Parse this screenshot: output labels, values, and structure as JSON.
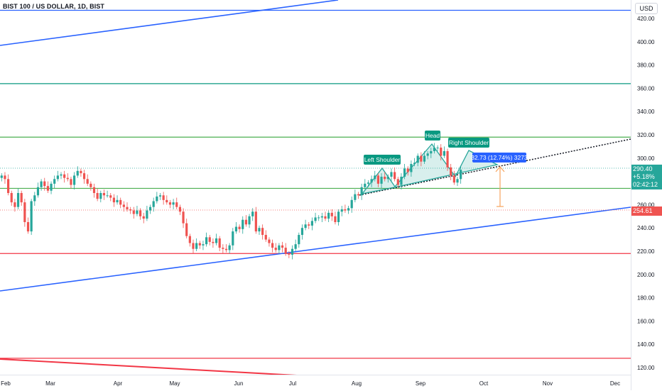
{
  "header": {
    "title": "BIST 100 / US DOLLAR, 1D, BIST",
    "currency": "USD"
  },
  "price_panel": {
    "last_price": "290.40",
    "change": "+5.18%",
    "countdown": "02:42:12",
    "marker_price": "254.61",
    "last_price_color": "#26a69a",
    "marker_color": "#ef5350"
  },
  "chart_data": {
    "type": "candlestick",
    "title": "BIST 100 / US DOLLAR, 1D, BIST",
    "x_axis": {
      "tick_labels": [
        "Feb",
        "Mar",
        "Apr",
        "May",
        "Jun",
        "Jul",
        "Aug",
        "Sep",
        "Oct",
        "Nov",
        "Dec"
      ]
    },
    "y_axis": {
      "range": [
        115,
        433
      ],
      "tick_labels": [
        "120.00",
        "140.00",
        "160.00",
        "180.00",
        "200.00",
        "220.00",
        "240.00",
        "260.00",
        "280.00",
        "300.00",
        "320.00",
        "340.00",
        "360.00",
        "380.00",
        "400.00",
        "420.00"
      ]
    },
    "series": [
      {
        "close": [
          285,
          282,
          270,
          262,
          258,
          270,
          262,
          245,
          237,
          263,
          268,
          275,
          280,
          276,
          272,
          278,
          282,
          285,
          286,
          283,
          282,
          277,
          285,
          289,
          287,
          282,
          278,
          275,
          270,
          265,
          270,
          268,
          268,
          266,
          262,
          264,
          260,
          258,
          256,
          255,
          252,
          255,
          250,
          248,
          255,
          258,
          263,
          267,
          268,
          264,
          262,
          260,
          262,
          258,
          254,
          244,
          233,
          227,
          222,
          227,
          225,
          226,
          232,
          228,
          227,
          231,
          223,
          222,
          221,
          225,
          237,
          241,
          239,
          247,
          243,
          250,
          254,
          237,
          240,
          234,
          230,
          227,
          223,
          221,
          225,
          223,
          218,
          217,
          222,
          226,
          234,
          240,
          243,
          242,
          246,
          249,
          249,
          250,
          248,
          253,
          250,
          245,
          254,
          256,
          255,
          257,
          264,
          269,
          268,
          275,
          278,
          279,
          282,
          285,
          278,
          284,
          282,
          284,
          288,
          282,
          277,
          284,
          291,
          288,
          295,
          296,
          302,
          297,
          302,
          304,
          306,
          309,
          309,
          302,
          306,
          292,
          285,
          279,
          282,
          290
        ]
      }
    ],
    "annotations": [
      {
        "text": "Left Shoulder",
        "value": 288
      },
      {
        "text": "Head",
        "value": 312
      },
      {
        "text": "Right Shoulder",
        "value": 301
      },
      {
        "text": "32.73 (12.74%) 3273",
        "value": 290.4
      }
    ],
    "horizontal_levels": [
      {
        "value": 427,
        "color": "#2962ff"
      },
      {
        "value": 364,
        "color": "#089981"
      },
      {
        "value": 318,
        "color": "#4caf50"
      },
      {
        "value": 274,
        "color": "#4caf50"
      },
      {
        "value": 218,
        "color": "#f23645"
      },
      {
        "value": 128,
        "color": "#f23645"
      }
    ],
    "grid": false,
    "legend": "none"
  },
  "colors": {
    "up": "#26a69a",
    "down": "#ef5350",
    "label_bg": "#089981",
    "measure_bg": "#2962ff",
    "measure_arrow": "#f7a35c"
  }
}
